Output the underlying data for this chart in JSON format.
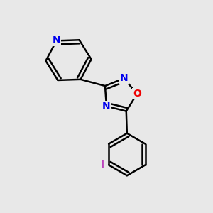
{
  "bg_color": "#e8e8e8",
  "bond_color": "#000000",
  "bond_width": 1.8,
  "atom_colors": {
    "N": "#0000ee",
    "O": "#ee0000",
    "I": "#bb44bb",
    "C": "#000000"
  },
  "font_size_atom": 10,
  "font_size_I": 10
}
